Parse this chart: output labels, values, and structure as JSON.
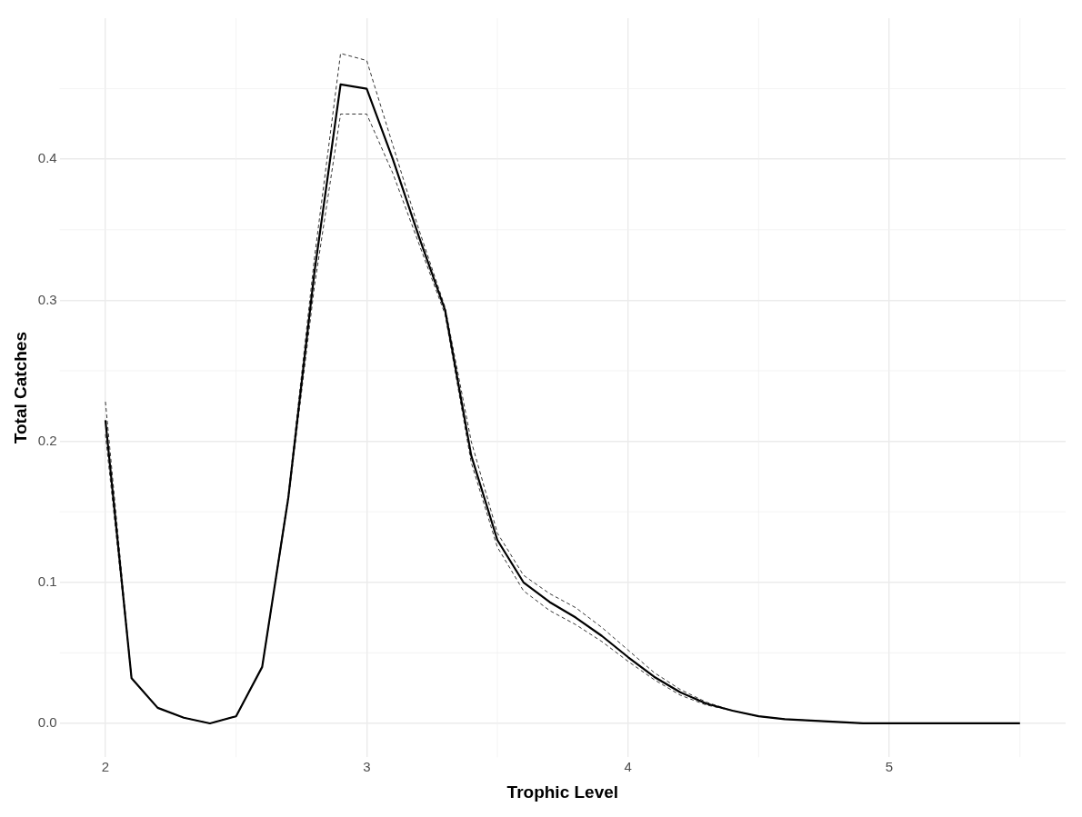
{
  "chart_data": {
    "type": "line",
    "xlabel": "Trophic Level",
    "ylabel": "Total Catches",
    "x": [
      2.0,
      2.1,
      2.2,
      2.3,
      2.4,
      2.5,
      2.6,
      2.7,
      2.8,
      2.9,
      3.0,
      3.1,
      3.2,
      3.3,
      3.4,
      3.5,
      3.6,
      3.7,
      3.8,
      3.9,
      4.0,
      4.1,
      4.2,
      4.3,
      4.4,
      4.5,
      4.6,
      4.7,
      4.8,
      4.9,
      5.0,
      5.1,
      5.2,
      5.3,
      5.4,
      5.5
    ],
    "series": [
      {
        "color": "#000000",
        "line_style": "solid",
        "values": [
          0.215,
          0.032,
          0.011,
          0.004,
          0.0,
          0.005,
          0.04,
          0.16,
          0.32,
          0.453,
          0.45,
          0.4,
          0.345,
          0.293,
          0.19,
          0.13,
          0.1,
          0.086,
          0.075,
          0.062,
          0.047,
          0.033,
          0.022,
          0.014,
          0.009,
          0.005,
          0.003,
          0.002,
          0.001,
          0.0,
          0.0,
          0.0,
          0.0,
          0.0,
          0.0,
          0.0
        ]
      },
      {
        "color": "#000000",
        "line_style": "dashed",
        "values": [
          0.228,
          0.032,
          0.011,
          0.004,
          0.0,
          0.005,
          0.04,
          0.162,
          0.33,
          0.475,
          0.47,
          0.41,
          0.35,
          0.295,
          0.2,
          0.135,
          0.105,
          0.092,
          0.082,
          0.068,
          0.052,
          0.036,
          0.024,
          0.015,
          0.009,
          0.005,
          0.003,
          0.002,
          0.001,
          0.0,
          0.0,
          0.0,
          0.0,
          0.0,
          0.0,
          0.0
        ]
      },
      {
        "color": "#000000",
        "line_style": "dashed",
        "values": [
          0.205,
          0.032,
          0.011,
          0.004,
          0.0,
          0.005,
          0.04,
          0.158,
          0.31,
          0.432,
          0.432,
          0.39,
          0.34,
          0.29,
          0.185,
          0.125,
          0.094,
          0.08,
          0.07,
          0.058,
          0.044,
          0.031,
          0.02,
          0.013,
          0.009,
          0.005,
          0.003,
          0.002,
          0.001,
          0.0,
          0.0,
          0.0,
          0.0,
          0.0,
          0.0,
          0.0
        ]
      }
    ],
    "xlim": [
      1.825,
      5.675
    ],
    "xticks": [
      2,
      3,
      4,
      5
    ],
    "ylim": [
      -0.024,
      0.5
    ],
    "yticks": [
      {
        "value": 0,
        "label": "0.0"
      },
      {
        "value": 0.1,
        "label": "0.1"
      },
      {
        "value": 0.2,
        "label": "0.2"
      },
      {
        "value": 0.3,
        "label": "0.3"
      },
      {
        "value": 0.4,
        "label": "0.4"
      }
    ],
    "grid": true
  }
}
